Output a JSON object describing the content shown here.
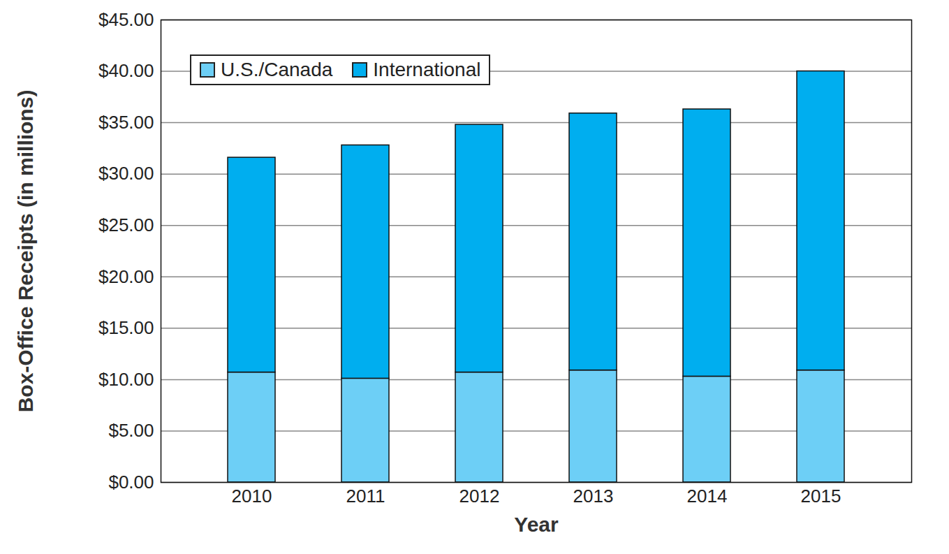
{
  "chart_data": {
    "type": "bar",
    "stacked": true,
    "x_label": "Year",
    "y_label": "Box-Office Receipts (in millions)",
    "categories": [
      "2010",
      "2011",
      "2012",
      "2013",
      "2014",
      "2015"
    ],
    "series": [
      {
        "name": "U.S./Canada",
        "color": "#6dcff6",
        "values": [
          10.7,
          10.1,
          10.7,
          10.9,
          10.3,
          10.9
        ]
      },
      {
        "name": "International",
        "color": "#00aeef",
        "values": [
          20.9,
          22.7,
          24.1,
          25.0,
          26.0,
          29.1
        ]
      }
    ],
    "ylim": [
      0,
      45
    ],
    "yticks": [
      {
        "value": 0,
        "label": "$0.00"
      },
      {
        "value": 5,
        "label": "$5.00"
      },
      {
        "value": 10,
        "label": "$10.00"
      },
      {
        "value": 15,
        "label": "$15.00"
      },
      {
        "value": 20,
        "label": "$20.00"
      },
      {
        "value": 25,
        "label": "$25.00"
      },
      {
        "value": 30,
        "label": "$30.00"
      },
      {
        "value": 35,
        "label": "$35.00"
      },
      {
        "value": 40,
        "label": "$40.00"
      },
      {
        "value": 45,
        "label": "$45.00"
      }
    ],
    "grid": true,
    "legend": "top-left"
  }
}
